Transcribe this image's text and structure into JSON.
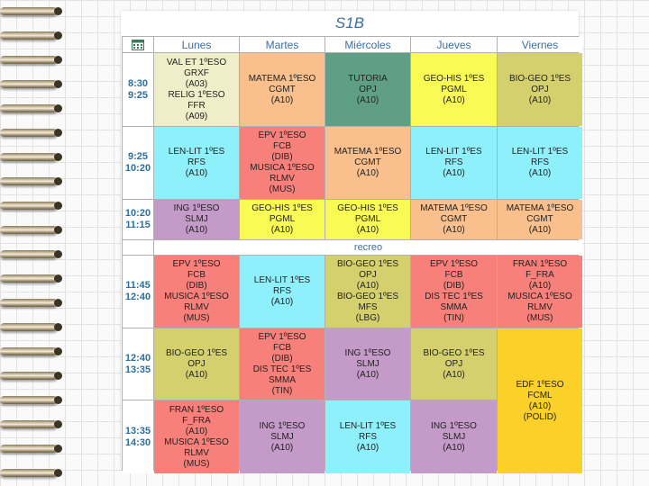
{
  "title": "S1B",
  "days": [
    "Lunes",
    "Martes",
    "Miércoles",
    "Jueves",
    "Viernes"
  ],
  "break_label": "recreo",
  "times": [
    {
      "start": "8:30",
      "end": "9:25"
    },
    {
      "start": "9:25",
      "end": "10:20"
    },
    {
      "start": "10:20",
      "end": "11:15"
    },
    {
      "start": "11:45",
      "end": "12:40"
    },
    {
      "start": "12:40",
      "end": "13:35"
    },
    {
      "start": "13:35",
      "end": "14:30"
    }
  ],
  "colors": {
    "cream": "#eeeec8",
    "peach": "#f9c08e",
    "teal": "#5f9f86",
    "yellow": "#fafa55",
    "olive": "#d4d06e",
    "cyan": "#8ef0fa",
    "salmon": "#f7807a",
    "purple": "#c49ac8",
    "gold": "#fad029"
  },
  "cells": {
    "r1": [
      {
        "lines": [
          "VAL ET 1ºESO",
          "GRXF",
          "(A03)",
          "RELIG 1ºESO",
          "FFR",
          "(A09)"
        ]
      },
      {
        "lines": [
          "MATEMA 1ºESO",
          "CGMT",
          "(A10)"
        ]
      },
      {
        "lines": [
          "TUTORIA",
          "OPJ",
          "(A10)"
        ]
      },
      {
        "lines": [
          "GEO-HIS 1ºES",
          "PGML",
          "(A10)"
        ]
      },
      {
        "lines": [
          "BIO-GEO 1ºES",
          "OPJ",
          "(A10)"
        ]
      }
    ],
    "r2": [
      {
        "lines": [
          "LEN-LIT 1ºES",
          "RFS",
          "(A10)"
        ]
      },
      {
        "lines": [
          "EPV 1ºESO",
          "FCB",
          "(DIB)",
          "MUSICA 1ºESO",
          "RLMV",
          "(MUS)"
        ]
      },
      {
        "lines": [
          "MATEMA 1ºESO",
          "CGMT",
          "(A10)"
        ]
      },
      {
        "lines": [
          "LEN-LIT 1ºES",
          "RFS",
          "(A10)"
        ]
      },
      {
        "lines": [
          "LEN-LIT 1ºES",
          "RFS",
          "(A10)"
        ]
      }
    ],
    "r3": [
      {
        "lines": [
          "ING 1ºESO",
          "SLMJ",
          "(A10)"
        ]
      },
      {
        "lines": [
          "GEO-HIS 1ºES",
          "PGML",
          "(A10)"
        ]
      },
      {
        "lines": [
          "GEO-HIS 1ºES",
          "PGML",
          "(A10)"
        ]
      },
      {
        "lines": [
          "MATEMA 1ºESO",
          "CGMT",
          "(A10)"
        ]
      },
      {
        "lines": [
          "MATEMA 1ºESO",
          "CGMT",
          "(A10)"
        ]
      }
    ],
    "r4": [
      {
        "lines": [
          "EPV 1ºESO",
          "FCB",
          "(DIB)",
          "MUSICA 1ºESO",
          "RLMV",
          "(MUS)"
        ]
      },
      {
        "lines": [
          "LEN-LIT 1ºES",
          "RFS",
          "(A10)"
        ]
      },
      {
        "lines": [
          "BIO-GEO 1ºES",
          "OPJ",
          "(A10)",
          "BIO-GEO 1ºES",
          "MFS",
          "(LBG)"
        ]
      },
      {
        "lines": [
          "EPV 1ºESO",
          "FCB",
          "(DIB)",
          "DIS TEC 1ºES",
          "SMMA",
          "(TIN)"
        ]
      },
      {
        "lines": [
          "FRAN 1ºESO",
          "F_FRA",
          "(A10)",
          "MUSICA 1ºESO",
          "RLMV",
          "(MUS)"
        ]
      }
    ],
    "r5": [
      {
        "lines": [
          "BIO-GEO 1ºES",
          "OPJ",
          "(A10)"
        ]
      },
      {
        "lines": [
          "EPV 1ºESO",
          "FCB",
          "(DIB)",
          "DIS TEC 1ºES",
          "SMMA",
          "(TIN)"
        ]
      },
      {
        "lines": [
          "ING 1ºESO",
          "SLMJ",
          "(A10)"
        ]
      },
      {
        "lines": [
          "BIO-GEO 1ºES",
          "OPJ",
          "(A10)"
        ]
      },
      {
        "lines": [
          "EDF 1ºESO",
          "FCML",
          "(A10)",
          "(POLID)"
        ]
      }
    ],
    "r6": [
      {
        "lines": [
          "FRAN 1ºESO",
          "F_FRA",
          "(A10)",
          "MUSICA 1ºESO",
          "RLMV",
          "(MUS)"
        ]
      },
      {
        "lines": [
          "ING 1ºESO",
          "SLMJ",
          "(A10)"
        ]
      },
      {
        "lines": [
          "LEN-LIT 1ºES",
          "RFS",
          "(A10)"
        ]
      },
      {
        "lines": [
          "ING 1ºESO",
          "SLMJ",
          "(A10)"
        ]
      }
    ]
  }
}
